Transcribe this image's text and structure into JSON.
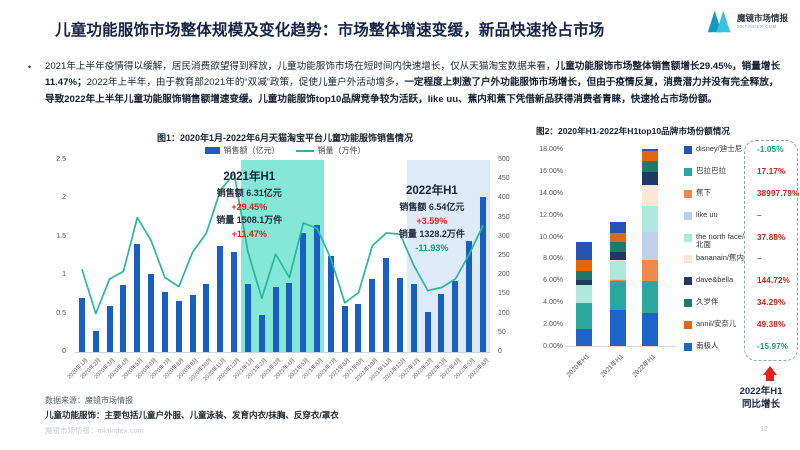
{
  "header": {
    "title": "儿童功能服饰市场整体规模及变化趋势：市场整体增速变缓，新品快速抢占市场",
    "logo_text": "魔镜市场情报",
    "logo_sub": "MKTINDEX.COM"
  },
  "intro": {
    "bullet": "•",
    "segments": [
      {
        "text": "2021年上半年疫情得以缓解，居民消费欲望得到释放，儿童功能服饰市场在短时间内快速增长，仅从天猫淘宝数据来看，",
        "bold": false
      },
      {
        "text": "儿童功能服饰市场整体销售额增长29.45%，销量增长11.47%；",
        "bold": true
      },
      {
        "text": "2022年上半年，由于教育部2021年的“双减”政策，促使儿童户外活动增多，",
        "bold": false
      },
      {
        "text": "一定程度上刺激了户外功能服饰市场增长，但由于疫情反复，消费潜力并没有完全释放，导致2022年上半年儿童功能服饰销售额增速变缓。儿童功能服饰top10品牌竞争较为活跃，like uu、蕉内和蕉下凭借新品获得消费者青睐，快速抢占市场份额。",
        "bold": true
      }
    ]
  },
  "chart_data": [
    {
      "type": "bar+line",
      "title": "图1：2020年1月-2022年6月天猫淘宝平台儿童功能服饰销售情况",
      "categories": [
        "2020年1月",
        "2020年2月",
        "2020年3月",
        "2020年4月",
        "2020年5月",
        "2020年6月",
        "2020年7月",
        "2020年8月",
        "2020年9月",
        "2020年10月",
        "2020年11月",
        "2020年12月",
        "2021年1月",
        "2021年2月",
        "2021年3月",
        "2021年4月",
        "2021年5月",
        "2021年6月",
        "2021年7月",
        "2021年8月",
        "2021年9月",
        "2021年10月",
        "2021年11月",
        "2021年12月",
        "2022年1月",
        "2022年2月",
        "2022年3月",
        "2022年4月",
        "2022年5月",
        "2022年6月"
      ],
      "series": [
        {
          "name": "销售额（亿元）",
          "type": "bar",
          "color": "#1760c2",
          "axis": "left",
          "values": [
            0.7,
            0.28,
            0.6,
            0.87,
            1.4,
            1.02,
            0.78,
            0.66,
            0.74,
            0.89,
            1.38,
            1.3,
            0.88,
            0.48,
            0.85,
            0.9,
            1.55,
            1.65,
            1.25,
            0.6,
            0.62,
            0.95,
            1.22,
            0.97,
            0.88,
            0.52,
            0.75,
            0.92,
            1.45,
            2.02
          ]
        },
        {
          "name": "销量（万件）",
          "type": "line",
          "color": "#2ab5a5",
          "axis": "right",
          "values": [
            216,
            100,
            190,
            210,
            350,
            290,
            194,
            170,
            260,
            310,
            420,
            466,
            261,
            140,
            255,
            194,
            336,
            322,
            243,
            128,
            155,
            277,
            310,
            307,
            225,
            160,
            168,
            190,
            255,
            330
          ]
        }
      ],
      "left_ylim": [
        0,
        2.5
      ],
      "right_ylim": [
        0,
        500
      ],
      "left_ticks": [
        2.5,
        2,
        1.5,
        1,
        0.5,
        0
      ],
      "right_ticks": [
        500,
        450,
        400,
        350,
        300,
        250,
        200,
        150,
        100,
        50,
        0
      ],
      "highlights": [
        {
          "from": "2021年1月",
          "to": "2021年6月",
          "color": "#85e7d6"
        },
        {
          "from": "2022年1月",
          "to": "2022年6月",
          "color": "#dfeaf8"
        }
      ],
      "annotations": [
        {
          "title": "2021年H1",
          "lines": [
            {
              "text": "销售额 6.31亿元",
              "tone": "dark"
            },
            {
              "text": "+29.45%",
              "tone": "red"
            },
            {
              "text": "销量 1508.1万件",
              "tone": "dark"
            },
            {
              "text": "+11.47%",
              "tone": "red"
            }
          ]
        },
        {
          "title": "2022年H1",
          "lines": [
            {
              "text": "销售额 6.54亿元",
              "tone": "dark"
            },
            {
              "text": "+3.59%",
              "tone": "red"
            },
            {
              "text": "销量 1328.2万件",
              "tone": "dark"
            },
            {
              "text": "-11.93%",
              "tone": "green"
            }
          ]
        }
      ]
    },
    {
      "type": "stacked-bar",
      "title": "图2：2020年H1-2022年H1top10品牌市场份额情况",
      "categories": [
        "2020年H1",
        "2021年H1",
        "2022年H1"
      ],
      "ylim": [
        0,
        18
      ],
      "yticks": [
        18,
        16,
        14,
        12,
        10,
        8,
        6,
        4,
        2,
        0
      ],
      "series": [
        {
          "name": "disney/迪士尼",
          "color": "#2456b0",
          "values": [
            1.6,
            1.0,
            0.2
          ],
          "growth": "-1.05%",
          "growth_color": "green"
        },
        {
          "name": "巴拉巴拉",
          "color": "#2aa79e",
          "values": [
            2.3,
            2.6,
            2.9
          ],
          "growth": "17.17%",
          "growth_color": "red"
        },
        {
          "name": "蕉下",
          "color": "#f08a4b",
          "values": [
            0,
            0.1,
            2.0
          ],
          "growth": "38997.79%",
          "growth_color": "red"
        },
        {
          "name": "like uu",
          "color": "#bfd0ea",
          "values": [
            0,
            0.1,
            2.5
          ],
          "growth": "–",
          "growth_color": "gray"
        },
        {
          "name": "the north face/北面",
          "color": "#aee9dc",
          "values": [
            1.7,
            1.7,
            2.4
          ],
          "growth": "37.88%",
          "growth_color": "red"
        },
        {
          "name": "bananain/蕉内",
          "color": "#fbe7d6",
          "values": [
            0,
            0.1,
            1.9
          ],
          "growth": "–",
          "growth_color": "gray"
        },
        {
          "name": "dave&bella",
          "color": "#1f3864",
          "values": [
            0.4,
            0.7,
            1.2
          ],
          "growth": "144.72%",
          "growth_color": "red"
        },
        {
          "name": "久岁伴",
          "color": "#217a68",
          "values": [
            0.9,
            0.9,
            1.0
          ],
          "growth": "34.29%",
          "growth_color": "red"
        },
        {
          "name": "annil/安奈儿",
          "color": "#e2670e",
          "values": [
            1.0,
            0.8,
            0.9
          ],
          "growth": "49.38%",
          "growth_color": "red"
        },
        {
          "name": "南极人",
          "color": "#1e63c8",
          "values": [
            1.6,
            3.3,
            3.0
          ],
          "growth": "-15.97%",
          "growth_color": "green"
        }
      ],
      "stack_order": [
        "南极人",
        "巴拉巴拉",
        "蕉下",
        "like uu",
        "the north face/北面",
        "bananain/蕉内",
        "dave&bella",
        "久岁伴",
        "annil/安奈儿",
        "disney/迪士尼"
      ],
      "arrow_label": [
        "2022年H1",
        "同比增长"
      ]
    }
  ],
  "footer": {
    "source": "数据来源：魔镜市场情报",
    "definition": "儿童功能服饰：主要包括儿童户外服、儿童泳装、发育内衣/抹胸、反穿衣/罩衣",
    "watermark": "魔镜市场情报：mktindex.com",
    "page": "12"
  }
}
